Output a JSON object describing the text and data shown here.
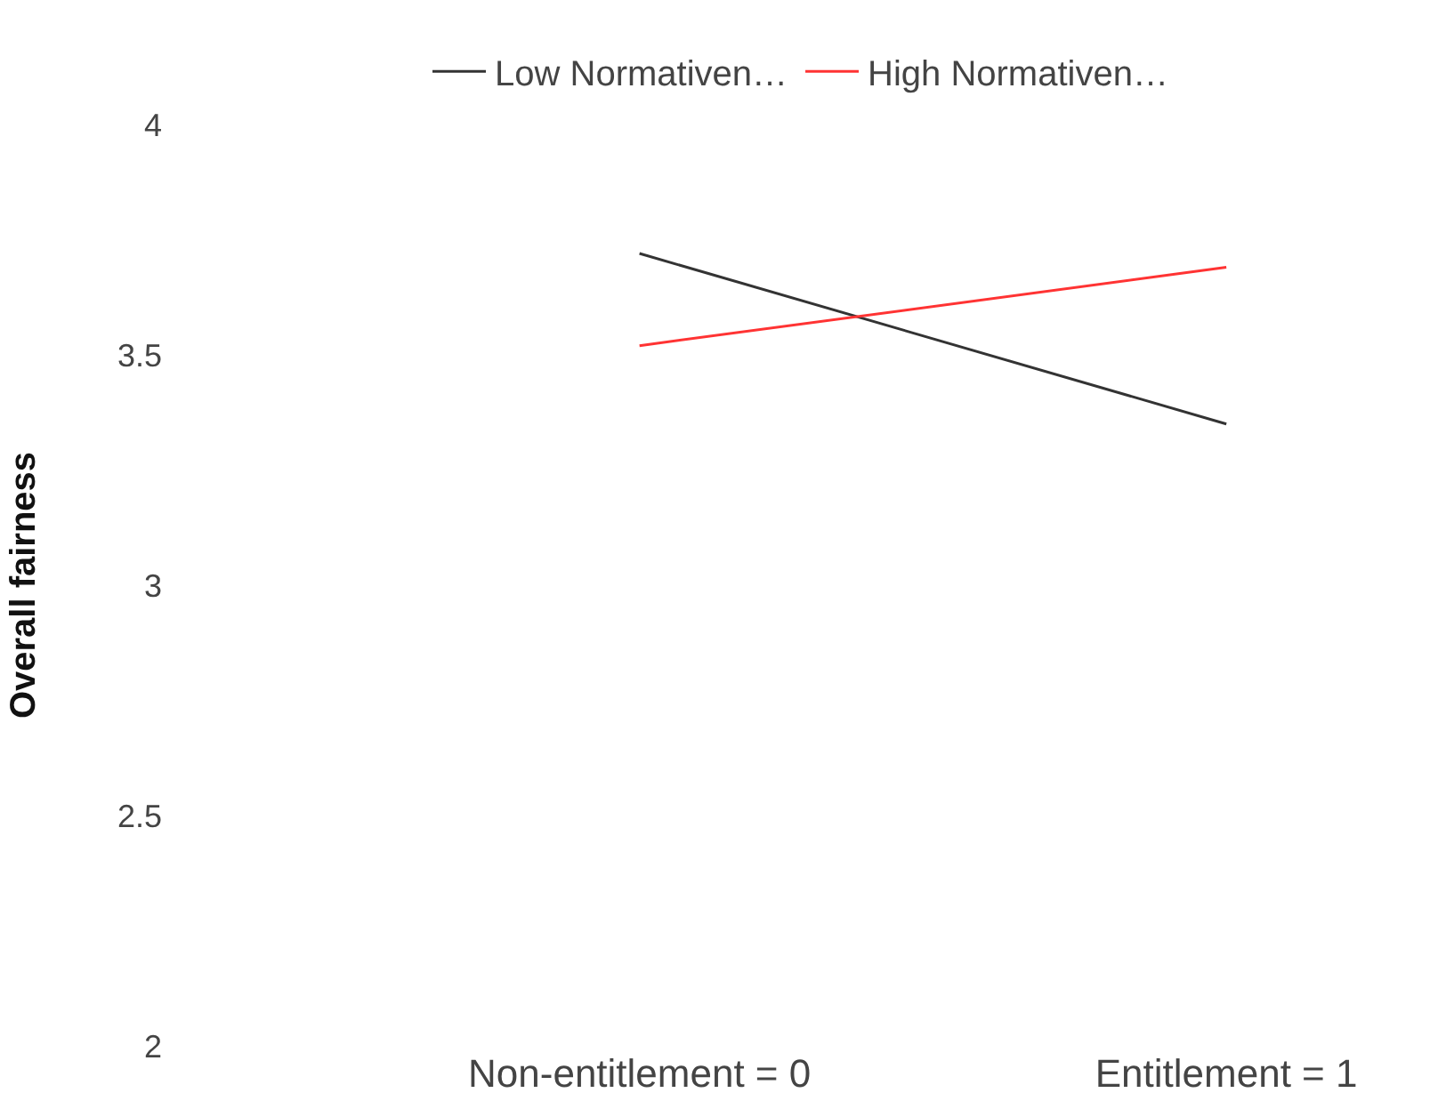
{
  "chart_data": {
    "type": "line",
    "ylabel": "Overall fairness",
    "categories": [
      "Non-entitlement = 0",
      "Entitlement = 1"
    ],
    "series": [
      {
        "name": "Low Normativen…",
        "color": "#333333",
        "values": [
          3.72,
          3.35
        ]
      },
      {
        "name": "High Normativen…",
        "color": "#ff3333",
        "values": [
          3.52,
          3.69
        ]
      }
    ],
    "ylim": [
      2,
      4
    ],
    "yticks": [
      2,
      2.5,
      3,
      3.5,
      4
    ],
    "legend": "top",
    "marker": "none",
    "line_style": "solid"
  }
}
